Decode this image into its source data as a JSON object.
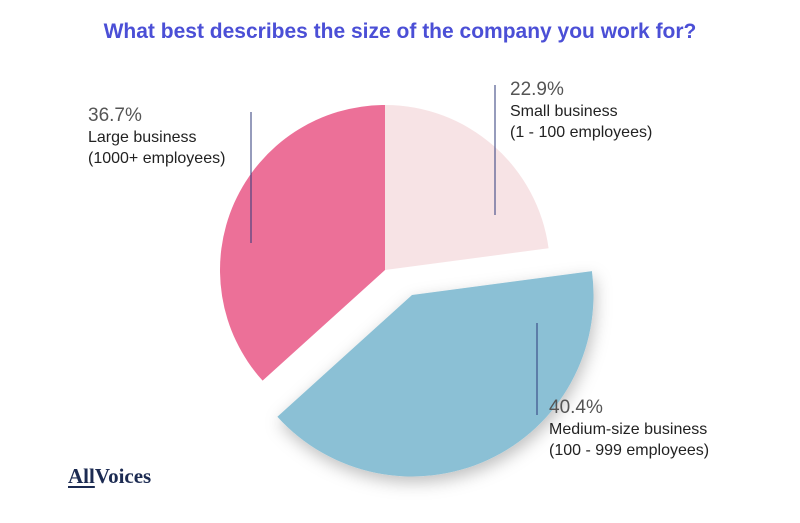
{
  "chart_data": {
    "type": "pie",
    "title": "What best describes the size of the company you work for?",
    "slices": [
      {
        "pct_label": "22.9%",
        "label": "Small business",
        "sub": "(1 - 100 employees)",
        "value": 22.9,
        "color": "#f7e3e5"
      },
      {
        "pct_label": "40.4%",
        "label": "Medium-size business",
        "sub": "(100 - 999 employees)",
        "value": 40.4,
        "color": "#8bc0d5"
      },
      {
        "pct_label": "36.7%",
        "label": "Large business",
        "sub": "(1000+ employees)",
        "value": 36.7,
        "color": "#ec7098"
      }
    ],
    "leader_color": "#2d3a7a"
  },
  "brand": {
    "part1": "All",
    "part2": "Voices"
  }
}
